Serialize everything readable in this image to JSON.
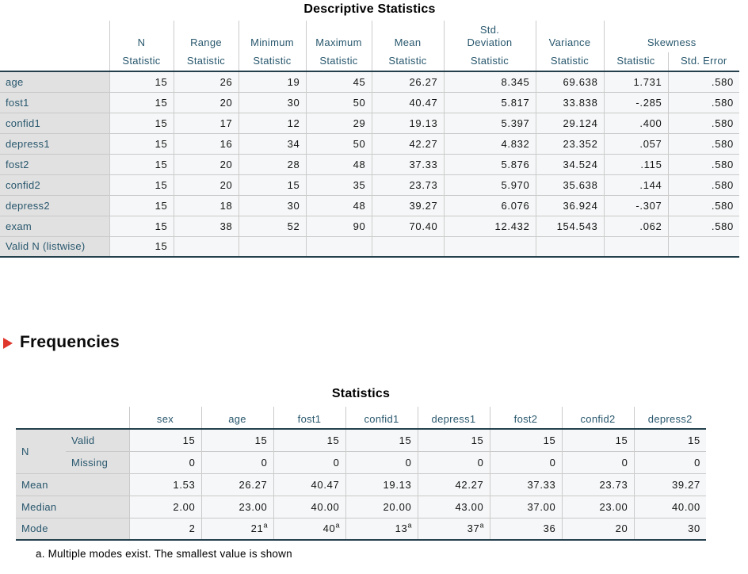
{
  "colors": {
    "header_text_blue": "#28576d",
    "row_label_bg": "#e1e1e1",
    "cell_bg": "#f6f7f8",
    "dark_border": "#24404d",
    "gridline": "#c9c9c9",
    "arrow_red": "#e0372c"
  },
  "icons": {
    "outline_arrow": "right-pointing red triangle"
  },
  "descriptives": {
    "title": "Descriptive Statistics",
    "col_groups": [
      {
        "label": "N",
        "sub": [
          "Statistic"
        ]
      },
      {
        "label": "Range",
        "sub": [
          "Statistic"
        ]
      },
      {
        "label": "Minimum",
        "sub": [
          "Statistic"
        ]
      },
      {
        "label": "Maximum",
        "sub": [
          "Statistic"
        ]
      },
      {
        "label": "Mean",
        "sub": [
          "Statistic"
        ]
      },
      {
        "label": "Std.\nDeviation",
        "sub": [
          "Statistic"
        ]
      },
      {
        "label": "Variance",
        "sub": [
          "Statistic"
        ]
      },
      {
        "label": "Skewness",
        "sub": [
          "Statistic",
          "Std. Error"
        ]
      }
    ],
    "rows": [
      {
        "label": "age",
        "values": [
          "15",
          "26",
          "19",
          "45",
          "26.27",
          "8.345",
          "69.638",
          "1.731",
          ".580"
        ]
      },
      {
        "label": "fost1",
        "values": [
          "15",
          "20",
          "30",
          "50",
          "40.47",
          "5.817",
          "33.838",
          "-.285",
          ".580"
        ]
      },
      {
        "label": "confid1",
        "values": [
          "15",
          "17",
          "12",
          "29",
          "19.13",
          "5.397",
          "29.124",
          ".400",
          ".580"
        ]
      },
      {
        "label": "depress1",
        "values": [
          "15",
          "16",
          "34",
          "50",
          "42.27",
          "4.832",
          "23.352",
          ".057",
          ".580"
        ]
      },
      {
        "label": "fost2",
        "values": [
          "15",
          "20",
          "28",
          "48",
          "37.33",
          "5.876",
          "34.524",
          ".115",
          ".580"
        ]
      },
      {
        "label": "confid2",
        "values": [
          "15",
          "20",
          "15",
          "35",
          "23.73",
          "5.970",
          "35.638",
          ".144",
          ".580"
        ]
      },
      {
        "label": "depress2",
        "values": [
          "15",
          "18",
          "30",
          "48",
          "39.27",
          "6.076",
          "36.924",
          "-.307",
          ".580"
        ]
      },
      {
        "label": "exam",
        "values": [
          "15",
          "38",
          "52",
          "90",
          "70.40",
          "12.432",
          "154.543",
          ".062",
          ".580"
        ]
      },
      {
        "label": "Valid N (listwise)",
        "values": [
          "15",
          "",
          "",
          "",
          "",
          "",
          "",
          "",
          ""
        ]
      }
    ]
  },
  "frequencies": {
    "heading": "Frequencies",
    "table": {
      "title": "Statistics",
      "columns": [
        "sex",
        "age",
        "fost1",
        "confid1",
        "depress1",
        "fost2",
        "confid2",
        "depress2"
      ],
      "rows": [
        {
          "label": "N",
          "sublabel": "Valid",
          "values": [
            "15",
            "15",
            "15",
            "15",
            "15",
            "15",
            "15",
            "15"
          ]
        },
        {
          "label": "",
          "sublabel": "Missing",
          "values": [
            "0",
            "0",
            "0",
            "0",
            "0",
            "0",
            "0",
            "0"
          ]
        },
        {
          "label": "Mean",
          "sublabel": "",
          "values": [
            "1.53",
            "26.27",
            "40.47",
            "19.13",
            "42.27",
            "37.33",
            "23.73",
            "39.27"
          ]
        },
        {
          "label": "Median",
          "sublabel": "",
          "values": [
            "2.00",
            "23.00",
            "40.00",
            "20.00",
            "43.00",
            "37.00",
            "23.00",
            "40.00"
          ]
        },
        {
          "label": "Mode",
          "sublabel": "",
          "values": [
            "2",
            "21^a",
            "40^a",
            "13^a",
            "37^a",
            "36",
            "20",
            "30"
          ]
        }
      ],
      "footnote": "a. Multiple modes exist. The smallest value is shown"
    }
  }
}
